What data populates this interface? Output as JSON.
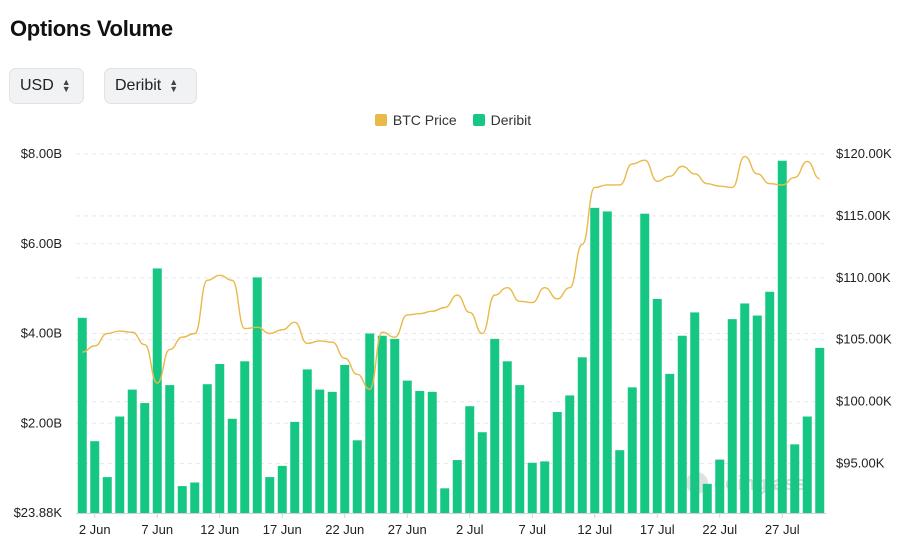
{
  "header": {
    "title": "Options Volume"
  },
  "controls": {
    "currency": {
      "value": "USD"
    },
    "exchange": {
      "value": "Deribit"
    }
  },
  "watermark": "coinglass",
  "colors": {
    "bar": "#16c784",
    "price": "#e9b949",
    "grid": "#e6e8eb"
  },
  "chart_data": {
    "type": "bar",
    "title": "Options Volume",
    "legend": [
      {
        "name": "BTC Price",
        "color": "#e9b949",
        "type": "line"
      },
      {
        "name": "Deribit",
        "color": "#16c784",
        "type": "bar"
      }
    ],
    "x_tick_labels": [
      "2 Jun",
      "7 Jun",
      "12 Jun",
      "17 Jun",
      "22 Jun",
      "27 Jun",
      "2 Jul",
      "7 Jul",
      "12 Jul",
      "17 Jul",
      "22 Jul",
      "27 Jul"
    ],
    "x_tick_index": [
      1,
      6,
      11,
      16,
      21,
      26,
      31,
      36,
      41,
      46,
      51,
      56
    ],
    "y_left": {
      "tick_labels": [
        "$23.88K",
        "$2.00B",
        "$4.00B",
        "$6.00B",
        "$8.00B"
      ],
      "ticks": [
        0,
        2,
        4,
        6,
        8
      ],
      "unit": "B",
      "range": [
        0,
        8
      ]
    },
    "y_right": {
      "tick_labels": [
        "$95.00K",
        "$100.00K",
        "$105.00K",
        "$110.00K",
        "$115.00K",
        "$120.00K"
      ],
      "ticks": [
        95,
        100,
        105,
        110,
        115,
        120
      ],
      "unit": "K",
      "range": [
        91,
        120
      ]
    },
    "series": [
      {
        "name": "Deribit",
        "type": "bar",
        "axis": "left",
        "values": [
          4.35,
          1.6,
          0.8,
          2.15,
          2.75,
          2.45,
          5.45,
          2.85,
          0.6,
          0.68,
          2.87,
          3.32,
          2.1,
          3.38,
          5.25,
          0.8,
          1.05,
          2.03,
          3.2,
          2.75,
          2.7,
          3.3,
          1.62,
          4.0,
          3.95,
          3.88,
          2.95,
          2.72,
          2.7,
          0.55,
          1.18,
          2.38,
          1.8,
          3.88,
          3.38,
          2.85,
          1.12,
          1.15,
          2.25,
          2.62,
          3.47,
          6.8,
          6.72,
          1.4,
          2.8,
          6.67,
          4.77,
          3.1,
          3.95,
          4.47,
          0.65,
          1.19,
          4.32,
          4.67,
          4.4,
          4.93,
          7.85,
          1.53,
          2.15,
          3.68
        ]
      },
      {
        "name": "BTC Price",
        "type": "line",
        "axis": "right",
        "values": [
          104.0,
          104.5,
          105.5,
          105.7,
          105.6,
          104.6,
          101.5,
          104.2,
          105.2,
          105.5,
          109.8,
          110.2,
          109.8,
          105.9,
          106.0,
          105.5,
          105.8,
          106.4,
          104.7,
          104.9,
          104.8,
          103.5,
          102.2,
          101.0,
          105.6,
          105.2,
          107.0,
          107.1,
          107.3,
          107.6,
          108.6,
          107.2,
          105.5,
          108.6,
          109.2,
          108.1,
          108.0,
          109.2,
          108.3,
          109.2,
          112.7,
          117.3,
          117.5,
          117.5,
          119.2,
          119.5,
          117.8,
          118.2,
          119.0,
          118.4,
          117.6,
          117.4,
          117.3,
          119.8,
          118.4,
          117.6,
          117.5,
          118.1,
          119.4,
          118.0
        ]
      }
    ],
    "grid": true,
    "legend_position": "top-center"
  }
}
